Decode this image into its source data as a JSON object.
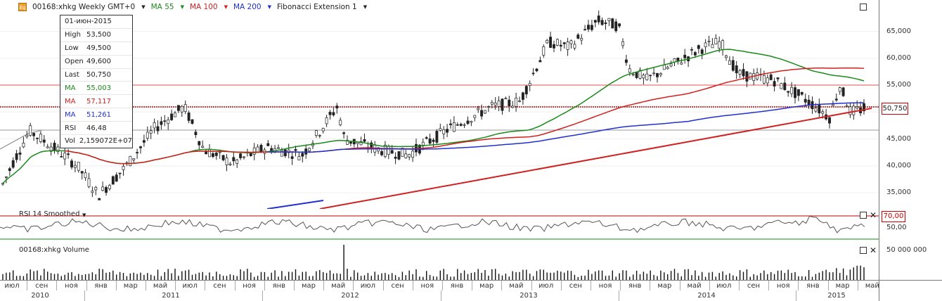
{
  "header": {
    "symbol": "00168:xhkg Weekly GMT+0",
    "ma55": "MA 55",
    "ma100": "MA 100",
    "ma200": "MA 200",
    "fib": "Fibonacci Extension 1"
  },
  "tooltip": [
    {
      "k": "",
      "v": "01-июн-2015",
      "color": "#222"
    },
    {
      "k": "High",
      "v": "53,500",
      "color": "#222"
    },
    {
      "k": "Low",
      "v": "49,500",
      "color": "#222"
    },
    {
      "k": "Open",
      "v": "49,600",
      "color": "#222"
    },
    {
      "k": "Last",
      "v": "50,750",
      "color": "#222"
    },
    {
      "k": "MA",
      "v": "55,003",
      "color": "#1a8a1a"
    },
    {
      "k": "MA",
      "v": "57,117",
      "color": "#d02020"
    },
    {
      "k": "MA",
      "v": "51,261",
      "color": "#2030d0"
    },
    {
      "k": "RSI",
      "v": "46,48",
      "color": "#222"
    },
    {
      "k": "Vol",
      "v": "2,159072E+07",
      "color": "#222"
    }
  ],
  "price_axis": [
    "65,000",
    "60,000",
    "55,000",
    "45,000",
    "40,000",
    "35,000"
  ],
  "last_price": "50,750",
  "rsi": {
    "title": "RSI 14 Smoothed",
    "level": "70,00",
    "mid": "50,00"
  },
  "volume": {
    "title": "00168:xhkg Volume",
    "axis": "50 000 000"
  },
  "time_axis": {
    "months": [
      "июл",
      "сен",
      "ноя",
      "янв",
      "мар",
      "май",
      "июл",
      "сен",
      "ноя",
      "янв",
      "мар",
      "май",
      "июл",
      "сен",
      "ноя",
      "янв",
      "мар",
      "май",
      "июл",
      "сен",
      "ноя",
      "янв",
      "мар",
      "май",
      "июл",
      "сен",
      "ноя",
      "янв",
      "мар",
      "май"
    ],
    "years": [
      "2010",
      "2011",
      "2012",
      "2013",
      "2014",
      "2015"
    ]
  },
  "colors": {
    "ma55": "#1a8a1a",
    "ma100": "#d02020",
    "ma200": "#2030d0",
    "accent": "#c00000"
  }
}
